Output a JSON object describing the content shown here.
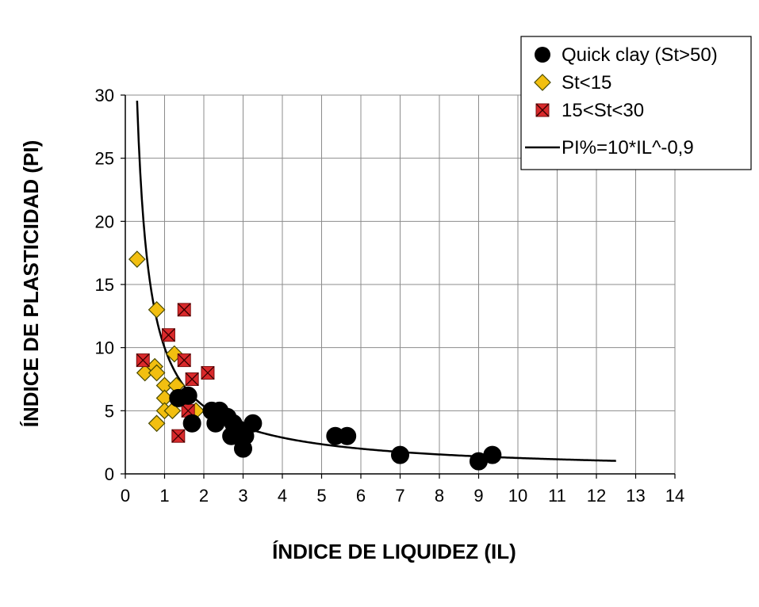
{
  "chart_data": {
    "type": "scatter",
    "xlabel": "ÍNDICE DE LIQUIDEZ  (IL)",
    "ylabel": "ÍNDICE DE PLASTICIDAD  (PI)",
    "xlim": [
      0,
      14
    ],
    "ylim": [
      0,
      30
    ],
    "x_ticks": [
      "0",
      "1",
      "2",
      "3",
      "4",
      "5",
      "6",
      "7",
      "8",
      "9",
      "10",
      "11",
      "12",
      "13",
      "14"
    ],
    "y_ticks": [
      "0",
      "5",
      "10",
      "15",
      "20",
      "25",
      "30"
    ],
    "grid": true,
    "legend_position": "top-right",
    "series": [
      {
        "name": "Quick clay (St>50)",
        "marker": "circle",
        "color": "#000000",
        "points": [
          [
            1.35,
            6
          ],
          [
            1.6,
            6.2
          ],
          [
            1.7,
            4
          ],
          [
            2.2,
            5
          ],
          [
            2.4,
            5
          ],
          [
            2.3,
            4
          ],
          [
            2.6,
            4.5
          ],
          [
            2.75,
            4
          ],
          [
            2.7,
            3
          ],
          [
            2.9,
            3.5
          ],
          [
            3.05,
            3
          ],
          [
            3.0,
            2
          ],
          [
            3.25,
            4
          ],
          [
            5.35,
            3
          ],
          [
            5.65,
            3
          ],
          [
            7.0,
            1.5
          ],
          [
            9.0,
            1
          ],
          [
            9.35,
            1.5
          ]
        ]
      },
      {
        "name": "St<15",
        "marker": "diamond",
        "color": "#f2bf10",
        "points": [
          [
            0.3,
            17
          ],
          [
            0.8,
            13
          ],
          [
            1.25,
            9.5
          ],
          [
            0.75,
            8.5
          ],
          [
            0.5,
            8
          ],
          [
            0.8,
            8
          ],
          [
            1.0,
            7
          ],
          [
            1.3,
            7
          ],
          [
            1.0,
            6
          ],
          [
            1.5,
            6
          ],
          [
            1.0,
            5
          ],
          [
            1.2,
            5
          ],
          [
            1.8,
            5
          ],
          [
            0.8,
            4
          ]
        ]
      },
      {
        "name": "15<St<30",
        "marker": "square-x",
        "color": "#d9292b",
        "points": [
          [
            0.45,
            9
          ],
          [
            1.1,
            11
          ],
          [
            1.5,
            13
          ],
          [
            1.5,
            9
          ],
          [
            2.1,
            8
          ],
          [
            1.7,
            7.5
          ],
          [
            1.6,
            5
          ],
          [
            1.35,
            3
          ]
        ]
      },
      {
        "name": "PI%=10*IL^-0,9",
        "marker": "line",
        "color": "#000000",
        "formula": "PI = 10 * IL^-0.9",
        "x_range": [
          0.3,
          12.5
        ]
      }
    ]
  }
}
